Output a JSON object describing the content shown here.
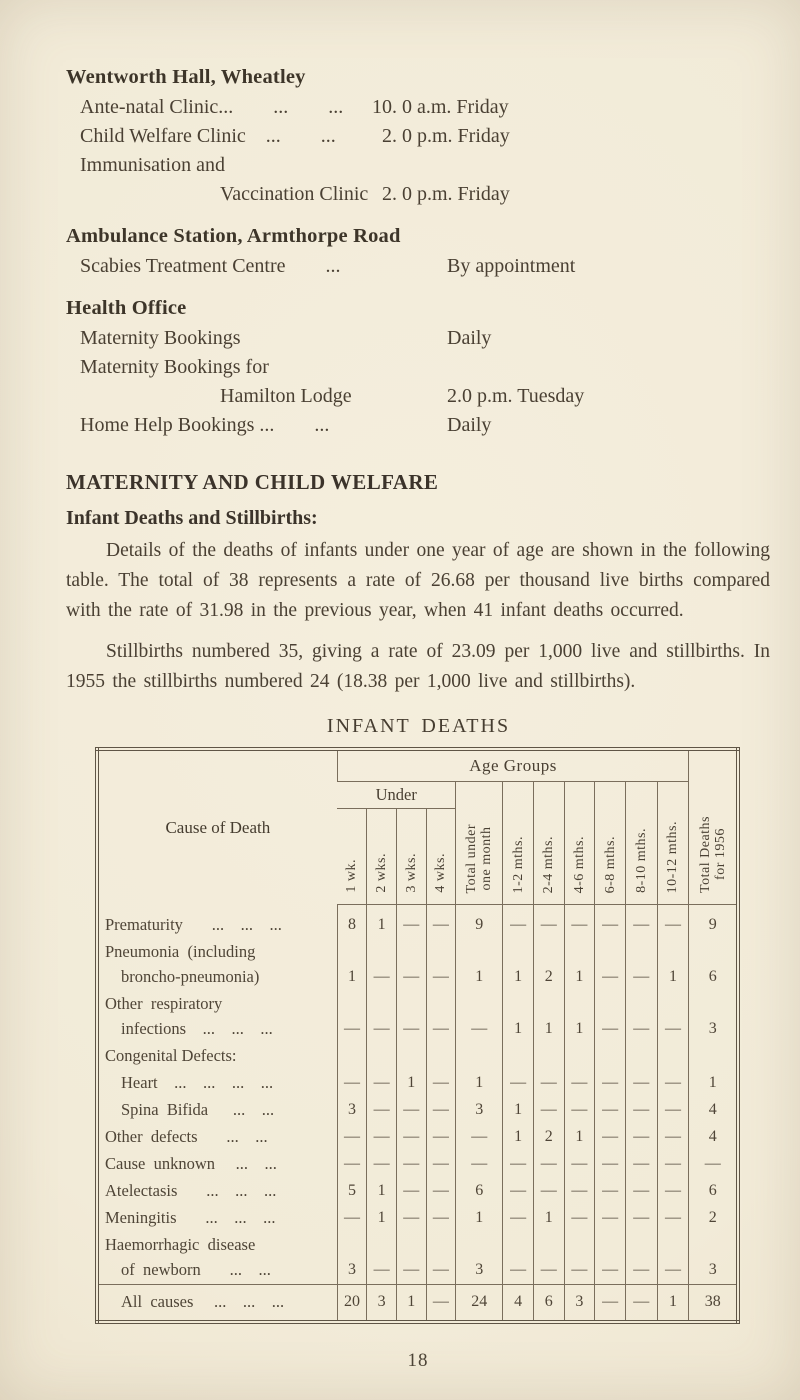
{
  "clinics": {
    "sections": [
      {
        "heading": "Wentworth Hall, Wheatley",
        "rows": [
          {
            "label": "Ante-natal Clinic...        ...        ...",
            "time": "10. 0 a.m. Friday",
            "indent": false
          },
          {
            "label": "Child Welfare Clinic    ...        ...",
            "time": "  2. 0 p.m. Friday",
            "indent": false
          },
          {
            "label": "Immunisation and",
            "time": "",
            "indent": false
          },
          {
            "label": "Vaccination Clinic",
            "time": "  2. 0 p.m. Friday",
            "indent": true
          }
        ]
      },
      {
        "heading": "Ambulance Station, Armthorpe Road",
        "rows": [
          {
            "label": "Scabies Treatment Centre        ...",
            "time": "By appointment",
            "indent": false
          }
        ]
      },
      {
        "heading": "Health Office",
        "rows": [
          {
            "label": "Maternity Bookings",
            "time": "Daily",
            "indent": false
          },
          {
            "label": "Maternity Bookings for",
            "time": "",
            "indent": false
          },
          {
            "label": "Hamilton Lodge",
            "time": "2.0 p.m. Tuesday",
            "indent": true
          },
          {
            "label": "Home Help Bookings ...        ...",
            "time": "Daily",
            "indent": false
          }
        ]
      }
    ]
  },
  "welfare": {
    "title": "MATERNITY AND CHILD WELFARE",
    "subtitle": "Infant Deaths and Stillbirths:",
    "para1": "Details of the deaths of infants under one year of age are shown in the following table. The total of 38 represents a rate of 26.68 per thousand live births compared with the rate of 31.98 in the previous year, when 41 infant deaths occurred.",
    "para2": "Stillbirths numbered 35, giving a rate of 23.09 per 1,000 live and stillbirths. In 1955 the stillbirths numbered 24 (18.38 per 1,000 live and stillbirths)."
  },
  "table": {
    "title": "INFANT DEATHS",
    "head": {
      "cause": "Cause of Death",
      "age_groups": "Age Groups",
      "under": "Under",
      "weeks": [
        "1 wk.",
        "2 wks.",
        "3 wks.",
        "4 wks."
      ],
      "total_month": [
        "Total under",
        "one month"
      ],
      "months": [
        "1-2 mths.",
        "2-4 mths.",
        "4-6 mths.",
        "6-8 mths.",
        "8-10 mths.",
        "10-12 mths."
      ],
      "total_year": [
        "Total Deaths",
        "for 1956"
      ]
    },
    "rows": [
      {
        "lines": [
          {
            "t": "Prematurity       ...    ...    ...",
            "i": 0
          }
        ],
        "v": [
          "8",
          "1",
          "—",
          "—",
          "9",
          "—",
          "—",
          "—",
          "—",
          "—",
          "—",
          "9"
        ],
        "total": false
      },
      {
        "lines": [
          {
            "t": "Pneumonia  (including",
            "i": 0
          },
          {
            "t": "broncho-pneumonia)",
            "i": 1
          }
        ],
        "v": [
          "1",
          "—",
          "—",
          "—",
          "1",
          "1",
          "2",
          "1",
          "—",
          "—",
          "1",
          "6"
        ],
        "total": false
      },
      {
        "lines": [
          {
            "t": "Other  respiratory",
            "i": 0
          },
          {
            "t": "infections    ...    ...    ...",
            "i": 1
          }
        ],
        "v": [
          "—",
          "—",
          "—",
          "—",
          "—",
          "1",
          "1",
          "1",
          "—",
          "—",
          "—",
          "3"
        ],
        "total": false
      },
      {
        "lines": [
          {
            "t": "Congenital Defects:",
            "i": 0
          }
        ],
        "v": [
          "",
          "",
          "",
          "",
          "",
          "",
          "",
          "",
          "",
          "",
          "",
          ""
        ],
        "total": false
      },
      {
        "lines": [
          {
            "t": "Heart    ...    ...    ...    ...",
            "i": 1
          }
        ],
        "v": [
          "—",
          "—",
          "1",
          "—",
          "1",
          "—",
          "—",
          "—",
          "—",
          "—",
          "—",
          "1"
        ],
        "total": false
      },
      {
        "lines": [
          {
            "t": "Spina  Bifida      ...    ...",
            "i": 1
          }
        ],
        "v": [
          "3",
          "—",
          "—",
          "—",
          "3",
          "1",
          "—",
          "—",
          "—",
          "—",
          "—",
          "4"
        ],
        "total": false
      },
      {
        "lines": [
          {
            "t": "Other  defects       ...    ...",
            "i": 0
          }
        ],
        "v": [
          "—",
          "—",
          "—",
          "—",
          "—",
          "1",
          "2",
          "1",
          "—",
          "—",
          "—",
          "4"
        ],
        "total": false
      },
      {
        "lines": [
          {
            "t": "Cause  unknown     ...    ...",
            "i": 0
          }
        ],
        "v": [
          "—",
          "—",
          "—",
          "—",
          "—",
          "—",
          "—",
          "—",
          "—",
          "—",
          "—",
          "—"
        ],
        "total": false
      },
      {
        "lines": [
          {
            "t": "Atelectasis       ...    ...    ...",
            "i": 0
          }
        ],
        "v": [
          "5",
          "1",
          "—",
          "—",
          "6",
          "—",
          "—",
          "—",
          "—",
          "—",
          "—",
          "6"
        ],
        "total": false
      },
      {
        "lines": [
          {
            "t": "Meningitis       ...    ...    ...",
            "i": 0
          }
        ],
        "v": [
          "—",
          "1",
          "—",
          "—",
          "1",
          "—",
          "1",
          "—",
          "—",
          "—",
          "—",
          "2"
        ],
        "total": false
      },
      {
        "lines": [
          {
            "t": "Haemorrhagic  disease",
            "i": 0
          },
          {
            "t": "of  newborn       ...    ...",
            "i": 1
          }
        ],
        "v": [
          "3",
          "—",
          "—",
          "—",
          "3",
          "—",
          "—",
          "—",
          "—",
          "—",
          "—",
          "3"
        ],
        "total": false
      },
      {
        "lines": [
          {
            "t": "All  causes     ...    ...    ...",
            "i": 1
          }
        ],
        "v": [
          "20",
          "3",
          "1",
          "—",
          "24",
          "4",
          "6",
          "3",
          "—",
          "—",
          "1",
          "38"
        ],
        "total": true
      }
    ]
  },
  "page": {
    "number": "18"
  }
}
